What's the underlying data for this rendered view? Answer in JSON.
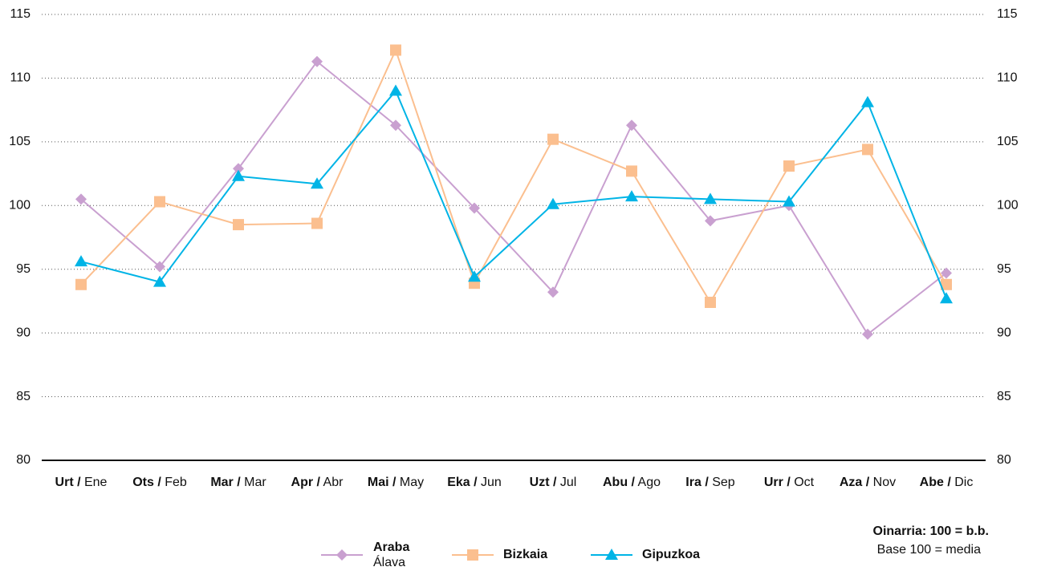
{
  "chart_data": {
    "type": "line",
    "categories": [
      [
        "Urt /",
        "Ene"
      ],
      [
        "Ots /",
        "Feb"
      ],
      [
        "Mar /",
        "Mar"
      ],
      [
        "Apr /",
        "Abr"
      ],
      [
        "Mai /",
        "May"
      ],
      [
        "Eka /",
        "Jun"
      ],
      [
        "Uzt /",
        "Jul"
      ],
      [
        "Abu /",
        "Ago"
      ],
      [
        "Ira /",
        "Sep"
      ],
      [
        "Urr /",
        "Oct"
      ],
      [
        "Aza /",
        "Nov"
      ],
      [
        "Abe /",
        "Dic"
      ]
    ],
    "series": [
      {
        "name": "Araba",
        "subname": "Álava",
        "color": "#c9a0d0",
        "marker": "diamond",
        "values": [
          100.5,
          95.2,
          102.9,
          111.3,
          106.3,
          99.8,
          93.2,
          106.3,
          98.8,
          100.0,
          89.9,
          94.7
        ]
      },
      {
        "name": "Bizkaia",
        "color": "#fbbf8f",
        "marker": "square",
        "values": [
          93.8,
          100.3,
          98.5,
          98.6,
          112.2,
          93.9,
          105.2,
          102.7,
          92.4,
          103.1,
          104.4,
          93.8
        ]
      },
      {
        "name": "Gipuzkoa",
        "color": "#00b4e6",
        "marker": "triangle",
        "values": [
          95.6,
          94.0,
          102.3,
          101.7,
          109.0,
          94.4,
          100.1,
          100.7,
          100.5,
          100.3,
          108.1,
          92.7
        ]
      }
    ],
    "ylim": [
      80,
      115
    ],
    "yticks": [
      80,
      85,
      90,
      95,
      100,
      105,
      110,
      115
    ],
    "grid": true,
    "note": [
      "Oinarria: 100 = b.b.",
      "Base 100 = media"
    ]
  }
}
